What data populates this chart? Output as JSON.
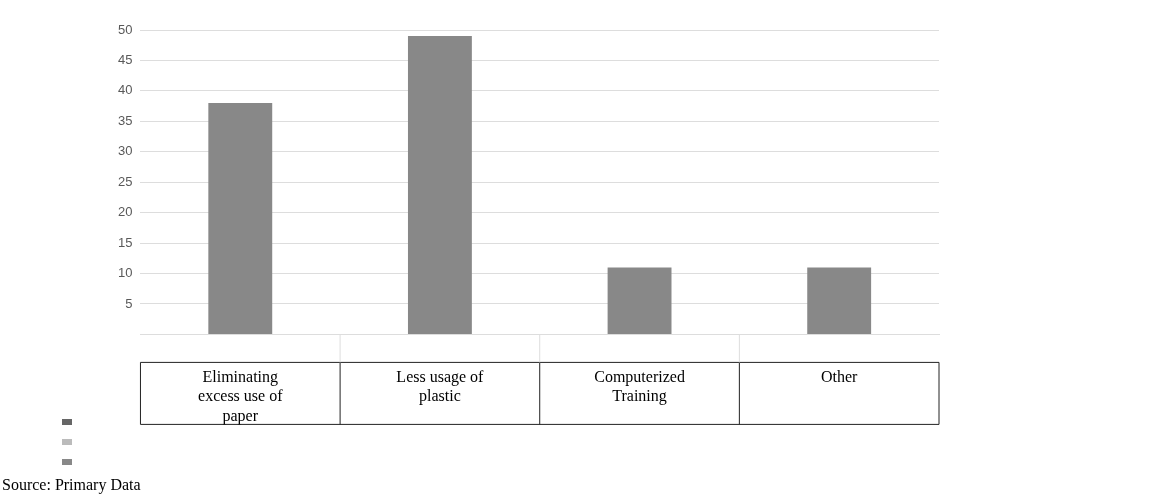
{
  "chart_data": {
    "type": "bar",
    "categories": [
      "Eliminating excess use of paper",
      "Less usage of plastic",
      "Computerized Training",
      "Other"
    ],
    "values": [
      38,
      49,
      11,
      11
    ],
    "color": "#888888",
    "ylim": [
      0,
      50
    ],
    "yticks": [
      {
        "value": 0,
        "label": null
      },
      5,
      10,
      15,
      20,
      25,
      30,
      35,
      40,
      45,
      50
    ],
    "grid": "y",
    "annotations": [
      "Source: Primary Data"
    ]
  }
}
